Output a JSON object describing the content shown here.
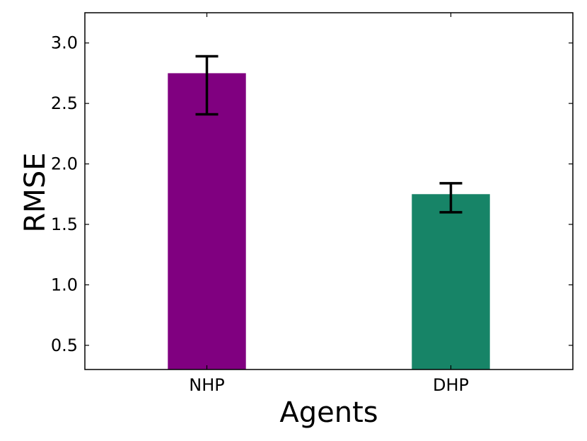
{
  "chart_data": {
    "type": "bar",
    "categories": [
      "NHP",
      "DHP"
    ],
    "values": [
      2.75,
      1.75
    ],
    "error_low": [
      2.41,
      1.6
    ],
    "error_high": [
      2.89,
      1.84
    ],
    "colors": [
      "#800080",
      "#178467"
    ],
    "xlabel": "Agents",
    "ylabel": "RMSE",
    "ylim": [
      0.3,
      3.25
    ],
    "yticks": [
      0.5,
      1.0,
      1.5,
      2.0,
      2.5,
      3.0
    ],
    "ytick_labels": [
      "0.5",
      "1.0",
      "1.5",
      "2.0",
      "2.5",
      "3.0"
    ],
    "grid": false,
    "legend": "none"
  }
}
